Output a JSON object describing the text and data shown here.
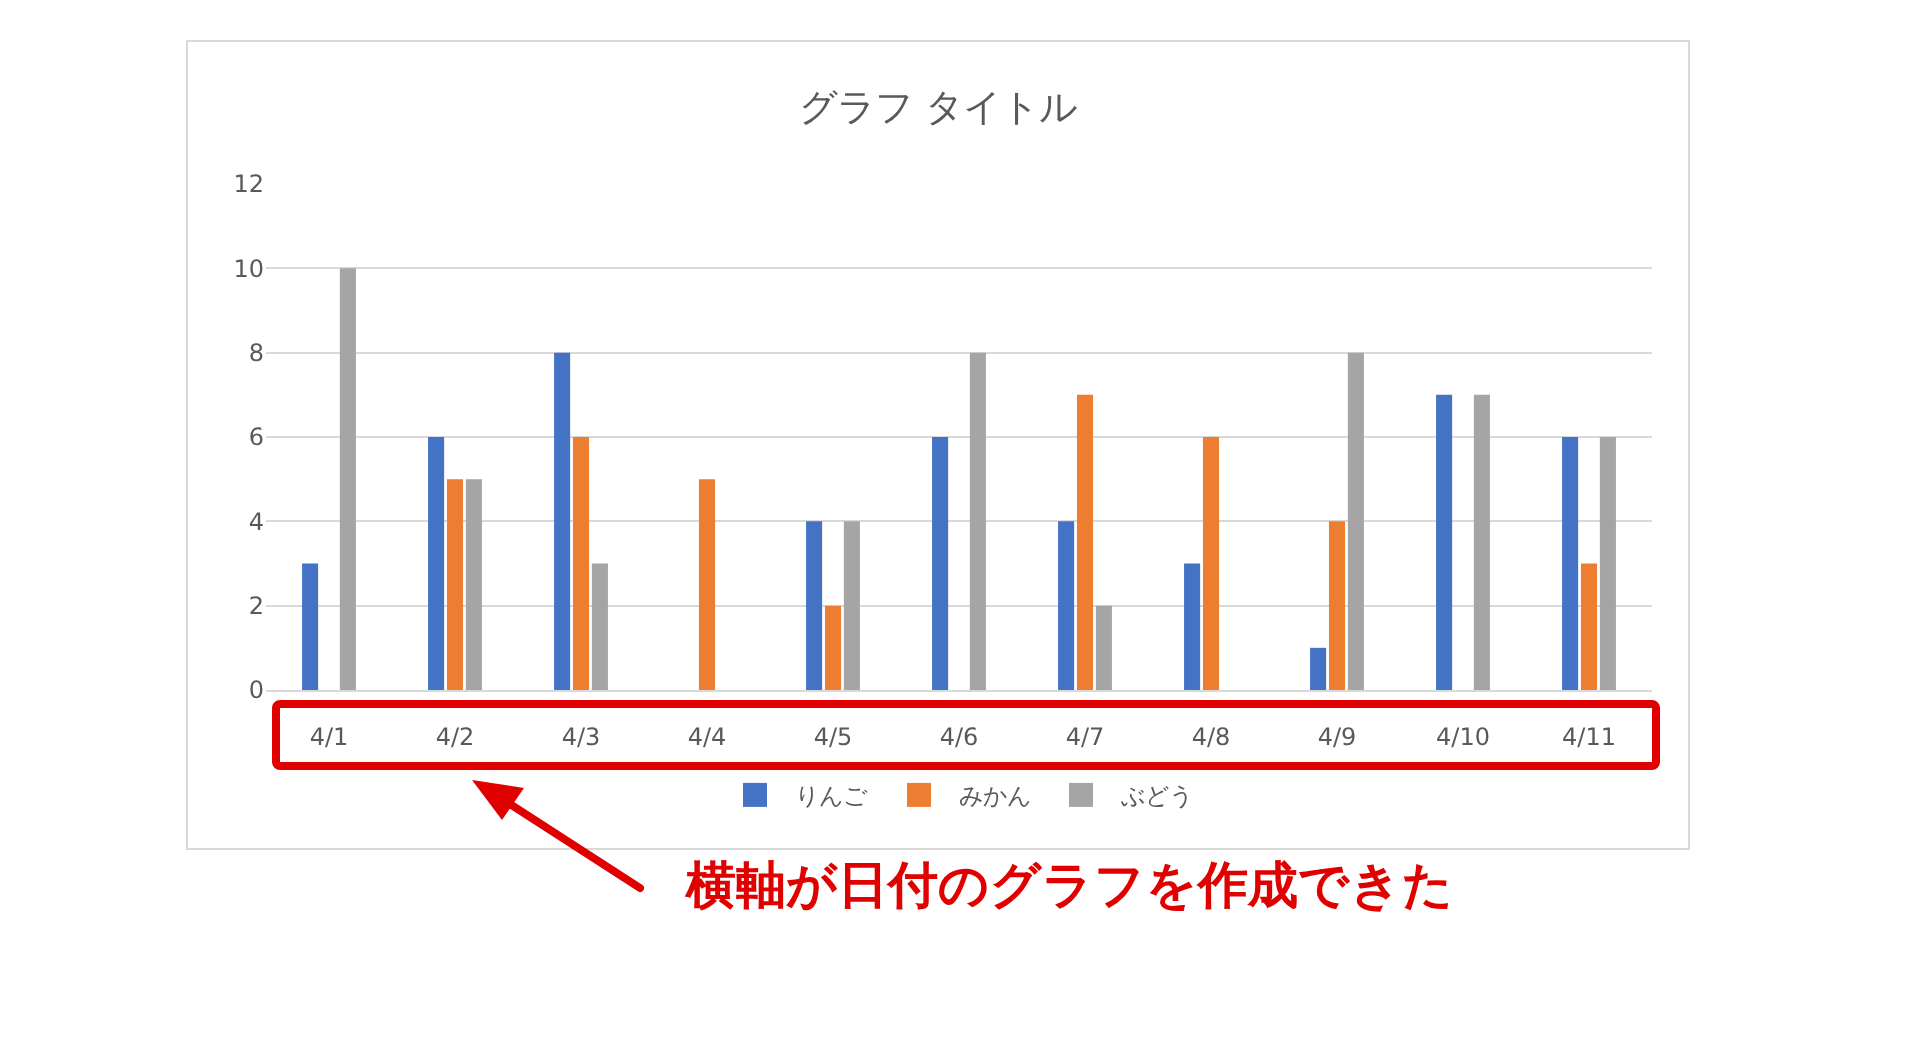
{
  "chart_data": {
    "type": "bar",
    "title": "グラフ タイトル",
    "categories": [
      "4/1",
      "4/2",
      "4/3",
      "4/4",
      "4/5",
      "4/6",
      "4/7",
      "4/8",
      "4/9",
      "4/10",
      "4/11"
    ],
    "series": [
      {
        "name": "りんご",
        "color": "#4472c4",
        "values": [
          3,
          6,
          8,
          0,
          4,
          6,
          4,
          3,
          1,
          7,
          6
        ]
      },
      {
        "name": "みかん",
        "color": "#ed7d31",
        "values": [
          0,
          5,
          6,
          5,
          2,
          0,
          7,
          6,
          4,
          0,
          3
        ]
      },
      {
        "name": "ぶどう",
        "color": "#a5a5a5",
        "values": [
          10,
          5,
          3,
          0,
          4,
          8,
          2,
          0,
          8,
          7,
          6
        ]
      }
    ],
    "ylim": [
      0,
      12
    ],
    "yticks": [
      0,
      2,
      4,
      6,
      8,
      10,
      12
    ],
    "grid": "y",
    "legend": "bottom",
    "annotations": [
      "横軸が日付のグラフを作成できた"
    ]
  }
}
